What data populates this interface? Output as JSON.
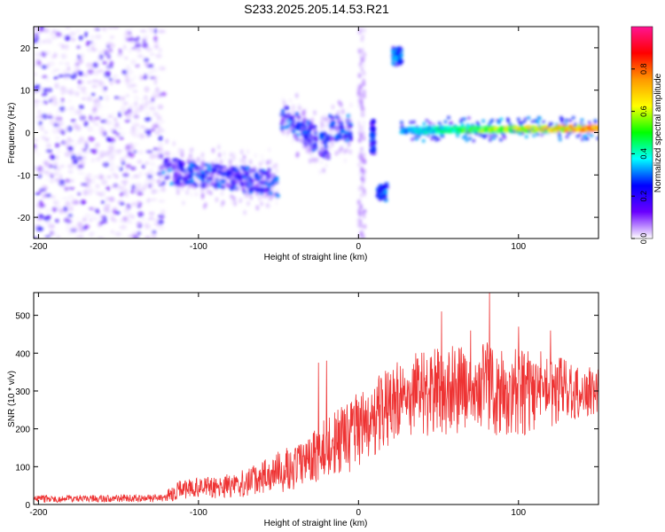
{
  "title": "S233.2025.205.14.53.R21",
  "chart_data": [
    {
      "type": "heatmap",
      "xlabel": "Height of straight line (km)",
      "ylabel": "Frequency (Hz)",
      "xlim": [
        -203,
        150
      ],
      "ylim": [
        -25,
        25
      ],
      "xticks": [
        -200,
        -100,
        0,
        100
      ],
      "yticks": [
        -20,
        -10,
        0,
        10,
        20
      ],
      "colorbar": {
        "label": "Normalized spectral amplitude",
        "range": [
          0,
          1
        ],
        "ticks": [
          "0.0",
          "0.2",
          "0.4",
          "0.6",
          "0.8"
        ],
        "tick_values": [
          0,
          0.2,
          0.4,
          0.6,
          0.8
        ],
        "colormap": [
          "#ffffff",
          "#6a00ff",
          "#0000ff",
          "#00ffff",
          "#00ff00",
          "#ffff00",
          "#ff9900",
          "#ff0000",
          "#ff1493"
        ]
      },
      "regions": [
        {
          "x_range": [
            -203,
            -122
          ],
          "y_range": [
            -25,
            25
          ],
          "kind": "noise",
          "amplitude": 0.1
        },
        {
          "x_range": [
            -122,
            -50
          ],
          "y_center_start": -9,
          "y_center_end": -12,
          "kind": "band",
          "amplitude": 0.3
        },
        {
          "x_range": [
            -48,
            -18
          ],
          "y_center_start": 4,
          "y_center_end": -4,
          "kind": "band",
          "amplitude": 0.3
        },
        {
          "x_range": [
            -18,
            -4
          ],
          "y_center_start": 1,
          "y_center_end": 1,
          "kind": "band",
          "amplitude": 0.3
        },
        {
          "x_range": [
            0,
            4
          ],
          "y_range": [
            -25,
            25
          ],
          "kind": "vertical",
          "amplitude": 0.1
        },
        {
          "x_range": [
            8,
            10
          ],
          "y_range": [
            -5,
            3
          ],
          "kind": "blob",
          "amplitude": 0.3
        },
        {
          "x_range": [
            12,
            18
          ],
          "y_range": [
            -16,
            -12
          ],
          "kind": "blob",
          "amplitude": 0.35
        },
        {
          "x_range": [
            21,
            27
          ],
          "y_range": [
            16,
            20
          ],
          "kind": "blob",
          "amplitude": 0.35
        },
        {
          "x_range": [
            27,
            150
          ],
          "y_center_start": 0.5,
          "y_center_end": 1,
          "kind": "carrier",
          "amplitude_start": 0.35,
          "amplitude_end": 0.85
        }
      ]
    },
    {
      "type": "line",
      "xlabel": "Height of straight line (km)",
      "ylabel": "SNR (10 * v/v)",
      "xlim": [
        -203,
        150
      ],
      "ylim": [
        0,
        560
      ],
      "xticks": [
        -200,
        -100,
        0,
        100
      ],
      "yticks": [
        0,
        100,
        200,
        300,
        400,
        500
      ],
      "color": "#ee3333",
      "series": [
        {
          "x": [
            -203,
            -190,
            -180,
            -170,
            -160,
            -150,
            -140,
            -130,
            -122,
            -115,
            -110,
            -100,
            -90,
            -80,
            -70,
            -60,
            -50,
            -40,
            -30,
            -25,
            -20,
            -15,
            -10,
            -5,
            0,
            10,
            20,
            30,
            40,
            50,
            60,
            70,
            80,
            90,
            100,
            110,
            120,
            130,
            140,
            150
          ],
          "y": [
            15,
            15,
            16,
            17,
            16,
            17,
            16,
            16,
            17,
            35,
            40,
            42,
            45,
            50,
            60,
            70,
            85,
            100,
            120,
            135,
            150,
            160,
            170,
            180,
            200,
            230,
            260,
            280,
            295,
            300,
            300,
            305,
            310,
            300,
            300,
            300,
            305,
            300,
            295,
            300
          ],
          "spread": [
            10,
            10,
            10,
            10,
            10,
            10,
            10,
            10,
            10,
            25,
            25,
            28,
            30,
            35,
            40,
            45,
            55,
            60,
            70,
            75,
            80,
            85,
            90,
            95,
            100,
            100,
            110,
            110,
            115,
            115,
            120,
            120,
            125,
            120,
            120,
            110,
            100,
            80,
            70,
            60
          ],
          "peaks": [
            [
              -25,
              375
            ],
            [
              -20,
              380
            ],
            [
              52,
              510
            ],
            [
              70,
              460
            ],
            [
              82,
              560
            ],
            [
              100,
              470
            ],
            [
              120,
              460
            ]
          ]
        }
      ]
    }
  ]
}
